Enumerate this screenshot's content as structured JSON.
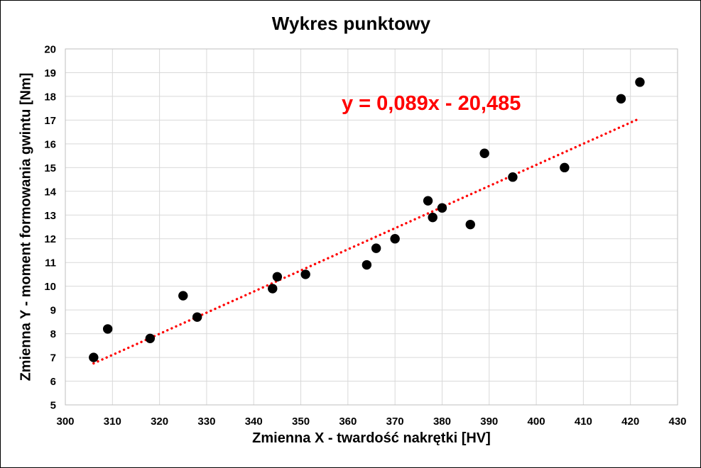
{
  "frame": {
    "background": "#FFFFFF",
    "border_color": "#000000"
  },
  "chart_data": {
    "type": "scatter",
    "title": "Wykres punktowy",
    "xlabel": "Zmienna X - twardość nakrętki [HV]",
    "ylabel": "Zmienna Y - moment formowania gwintu [Nm]",
    "xlim": [
      300,
      430
    ],
    "ylim": [
      5,
      20
    ],
    "x_ticks": [
      300,
      310,
      320,
      330,
      340,
      350,
      360,
      370,
      380,
      390,
      400,
      410,
      420,
      430
    ],
    "y_ticks": [
      5,
      6,
      7,
      8,
      9,
      10,
      11,
      12,
      13,
      14,
      15,
      16,
      17,
      18,
      19,
      20
    ],
    "grid": true,
    "gridline_color": "#D9D9D9",
    "axis_line_color": "#BFBFBF",
    "tick_text_color": "#000000",
    "legend": "none",
    "points": [
      [
        306,
        7.0
      ],
      [
        309,
        8.2
      ],
      [
        318,
        7.8
      ],
      [
        325,
        9.6
      ],
      [
        328,
        8.7
      ],
      [
        344,
        9.9
      ],
      [
        345,
        10.4
      ],
      [
        351,
        10.5
      ],
      [
        364,
        10.9
      ],
      [
        366,
        11.6
      ],
      [
        370,
        12.0
      ],
      [
        377,
        13.6
      ],
      [
        378,
        12.9
      ],
      [
        380,
        13.3
      ],
      [
        386,
        12.6
      ],
      [
        389,
        15.6
      ],
      [
        395,
        14.6
      ],
      [
        406,
        15.0
      ],
      [
        418,
        17.9
      ],
      [
        422,
        18.6
      ]
    ],
    "marker": {
      "shape": "circle",
      "color": "#000000",
      "radius_px": 6.7
    },
    "trendline": {
      "label": "y = 0,089x - 20,485",
      "slope": 0.089,
      "intercept": -20.485,
      "x_start": 306,
      "x_end": 422,
      "color": "#FF0000",
      "style": "round-dot"
    }
  }
}
